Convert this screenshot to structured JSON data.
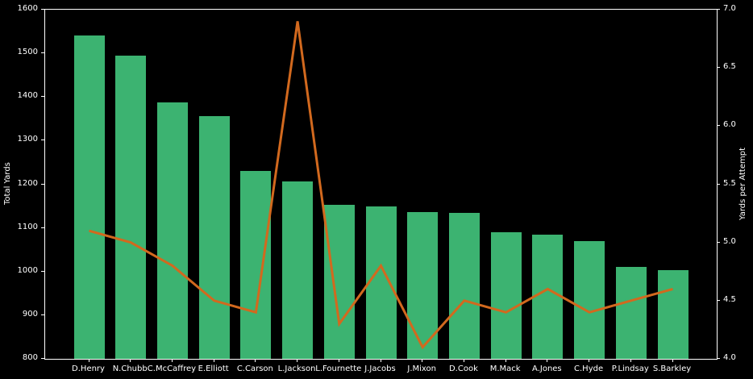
{
  "chart_data": {
    "type": "bar",
    "note": "combo bar + line chart, dark background",
    "background_color": "#000000",
    "axis_color": "#ffffff",
    "grid": false,
    "legend": "none",
    "categories": [
      "D.Henry",
      "N.Chubb",
      "C.McCaffrey",
      "E.Elliott",
      "C.Carson",
      "L.Jackson",
      "L.Fournette",
      "J.Jacobs",
      "J.Mixon",
      "D.Cook",
      "M.Mack",
      "A.Jones",
      "C.Hyde",
      "P.Lindsay",
      "S.Barkley"
    ],
    "series": [
      {
        "name": "Total Yards",
        "type": "bar",
        "axis": "left",
        "color": "#3cb371",
        "values": [
          1540,
          1494,
          1387,
          1357,
          1230,
          1206,
          1152,
          1150,
          1137,
          1135,
          1091,
          1084,
          1070,
          1011,
          1003
        ]
      },
      {
        "name": "Yards per Attempt",
        "type": "line",
        "axis": "right",
        "color": "#d2691e",
        "values": [
          5.1,
          5.0,
          4.8,
          4.5,
          4.4,
          6.9,
          4.3,
          4.8,
          4.1,
          4.5,
          4.4,
          4.6,
          4.4,
          4.5,
          4.6
        ]
      }
    ],
    "left_axis": {
      "label": "Total Yards",
      "min": 800,
      "max": 1600,
      "ticks": [
        800,
        900,
        1000,
        1100,
        1200,
        1300,
        1400,
        1500,
        1600
      ]
    },
    "right_axis": {
      "label": "Yards per Attempt",
      "min": 4.0,
      "max": 7.0,
      "ticks": [
        4.0,
        4.5,
        5.0,
        5.5,
        6.0,
        6.5,
        7.0
      ]
    }
  }
}
